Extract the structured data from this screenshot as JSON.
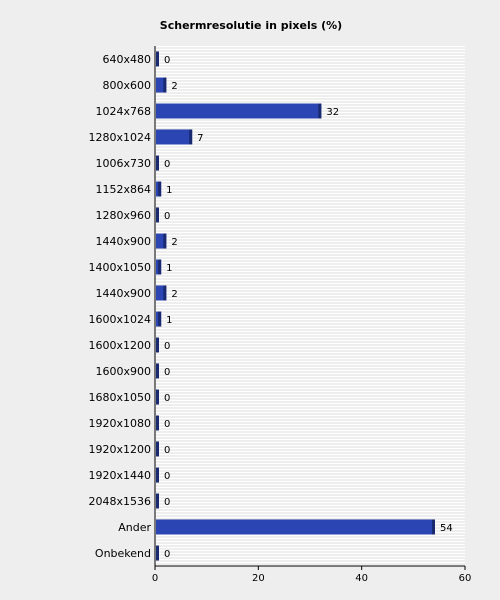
{
  "chart_data": {
    "type": "bar",
    "orientation": "horizontal",
    "title": "Schermresolutie in pixels (%)",
    "categories": [
      "640x480",
      "800x600",
      "1024x768",
      "1280x1024",
      "1006x730",
      "1152x864",
      "1280x960",
      "1440x900",
      "1400x1050",
      "1440x900",
      "1600x1024",
      "1600x1200",
      "1600x900",
      "1680x1050",
      "1920x1080",
      "1920x1200",
      "1920x1440",
      "2048x1536",
      "Ander",
      "Onbekend"
    ],
    "values": [
      0,
      2,
      32,
      7,
      0,
      1,
      0,
      2,
      1,
      2,
      1,
      0,
      0,
      0,
      0,
      0,
      0,
      0,
      54,
      0
    ],
    "xlim": [
      0,
      60
    ],
    "xticks": [
      0,
      20,
      40,
      60
    ],
    "grid": true,
    "bar_color": "#2b45b2",
    "bar_edge_color": "#1a2a70"
  }
}
